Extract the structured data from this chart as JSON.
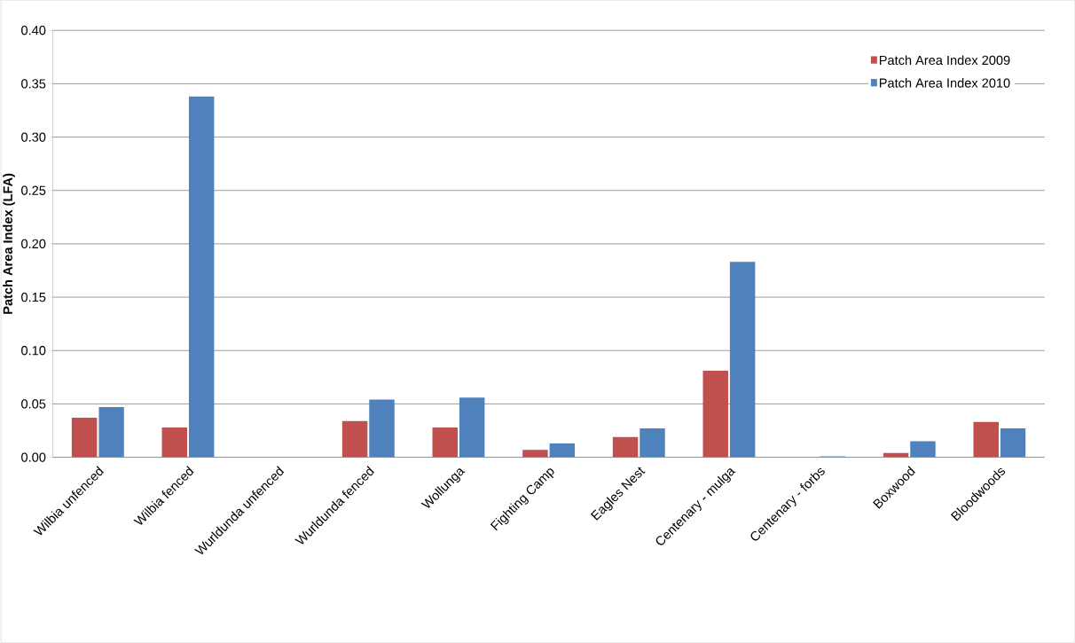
{
  "chart_data": {
    "type": "bar",
    "ylabel": "Patch Area Index (LFA)",
    "categories": [
      "Wilbia unfenced",
      "Wilbia fenced",
      "Wurldunda unfenced",
      "Wurldunda fenced",
      "Wollunga",
      "Fighting Camp",
      "Eagles Nest",
      "Centenary - mulga",
      "Centenary - forbs",
      "Boxwood",
      "Bloodwoods"
    ],
    "series": [
      {
        "name": "Patch Area Index 2009",
        "color": "#c0504d",
        "values": [
          0.037,
          0.028,
          0,
          0.034,
          0.028,
          0.007,
          0.019,
          0.081,
          0,
          0.004,
          0.033
        ]
      },
      {
        "name": "Patch Area Index 2010",
        "color": "#4f81bd",
        "values": [
          0.047,
          0.338,
          0,
          0.054,
          0.056,
          0.013,
          0.027,
          0.183,
          0.001,
          0.015,
          0.027
        ]
      }
    ],
    "ylim": [
      0,
      0.4
    ],
    "yticks": [
      {
        "value": 0,
        "label": "0.00"
      },
      {
        "value": 0.05,
        "label": "0.05"
      },
      {
        "value": 0.1,
        "label": "0.10"
      },
      {
        "value": 0.15,
        "label": "0.15"
      },
      {
        "value": 0.2,
        "label": "0.20"
      },
      {
        "value": 0.25,
        "label": "0.25"
      },
      {
        "value": 0.3,
        "label": "0.30"
      },
      {
        "value": 0.35,
        "label": "0.35"
      },
      {
        "value": 0.4,
        "label": "0.40"
      }
    ],
    "grid": "y",
    "legend": "top right"
  }
}
